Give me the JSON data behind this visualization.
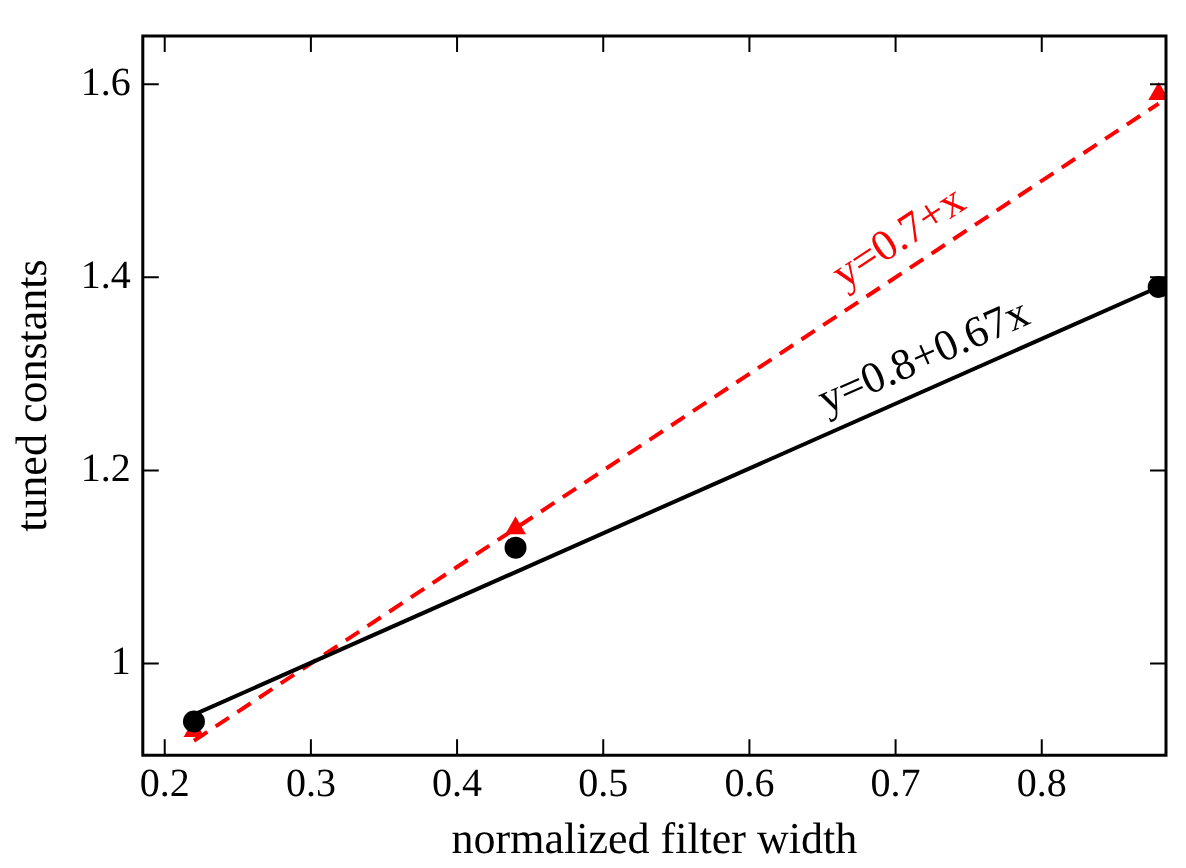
{
  "chart_data": {
    "type": "scatter",
    "xlabel": "normalized filter width",
    "ylabel": "tuned constants",
    "xlim": [
      0.185,
      0.885
    ],
    "xticks": [
      0.2,
      0.3,
      0.4,
      0.5,
      0.6,
      0.7,
      0.8
    ],
    "ylim": [
      0.905,
      1.65
    ],
    "yticks": [
      1,
      1.2,
      1.4,
      1.6
    ],
    "grid": false,
    "legend": false,
    "series": [
      {
        "type": "scatter",
        "color": "#000000",
        "marker": "circle",
        "x": [
          0.22,
          0.44,
          0.88
        ],
        "values": [
          0.94,
          1.12,
          1.39
        ]
      },
      {
        "type": "scatter",
        "color": "#ff0000",
        "marker": "triangle",
        "x": [
          0.22,
          0.44,
          0.88
        ],
        "values": [
          0.93,
          1.14,
          1.59
        ]
      },
      {
        "type": "line",
        "color": "#000000",
        "line_style": "solid",
        "x": [
          0.22,
          0.88
        ],
        "values": [
          0.947,
          1.39
        ]
      },
      {
        "type": "line",
        "color": "#ff0000",
        "line_style": "dashed",
        "x": [
          0.22,
          0.88
        ],
        "values": [
          0.92,
          1.58
        ]
      }
    ],
    "annotations": [
      {
        "text": "y=0.8+0.67x",
        "x": 0.728,
        "y": 1.288
      },
      {
        "text": "y=0.7+x",
        "x": 0.714,
        "y": 1.414
      }
    ]
  }
}
